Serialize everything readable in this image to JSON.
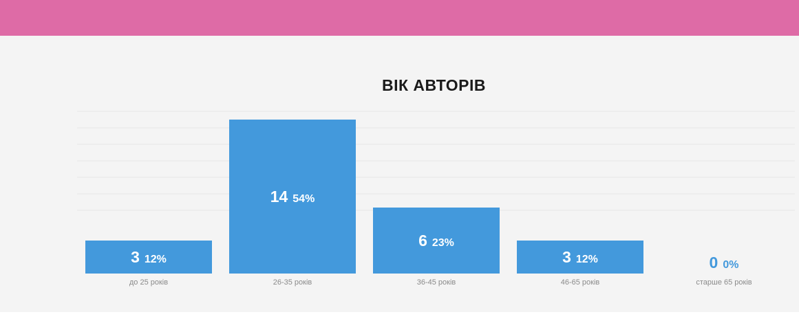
{
  "colors": {
    "top_band": "#de6ba6",
    "panel": "#f4f4f4",
    "bar": "#4399dc",
    "bar_text": "#ffffff",
    "zero_text": "#4399dc",
    "grid": "#e6e6e6"
  },
  "chart_data": {
    "type": "bar",
    "title": "ВІК АВТОРІВ",
    "categories": [
      "до 25 років",
      "26-35 років",
      "36-45 років",
      "46-65 років",
      "старше 65 років"
    ],
    "values": [
      3,
      14,
      6,
      3,
      0
    ],
    "percent_labels": [
      "12%",
      "54%",
      "23%",
      "12%",
      "0%"
    ],
    "ylim": [
      0,
      14
    ],
    "grid": true,
    "legend": "none"
  }
}
